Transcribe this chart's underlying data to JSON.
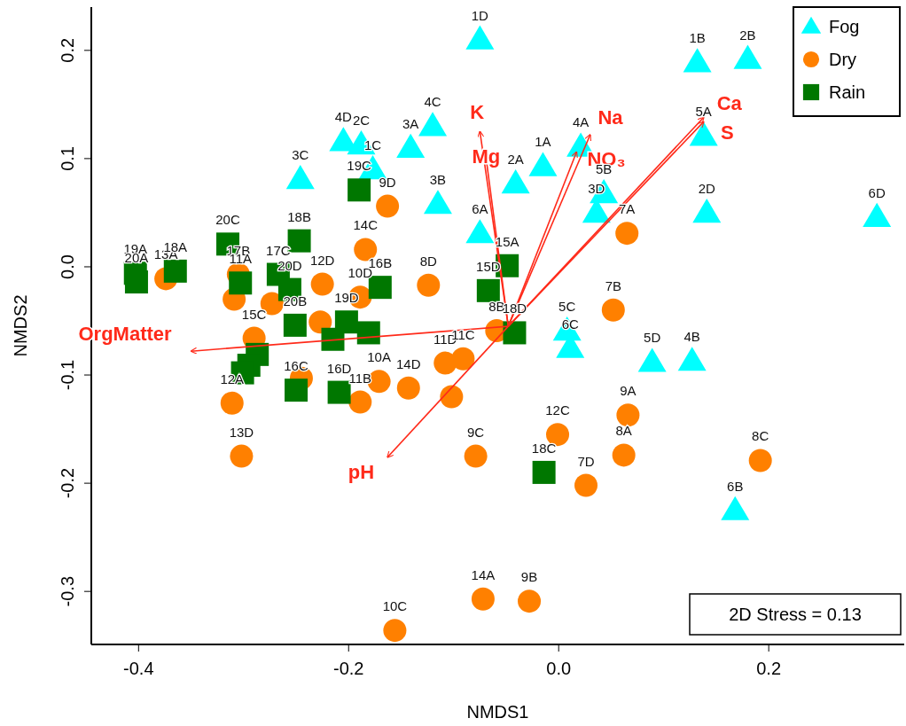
{
  "chart_data": {
    "type": "scatter",
    "xlabel": "NMDS1",
    "ylabel": "NMDS2",
    "xlim": [
      -0.445,
      0.329
    ],
    "ylim": [
      -0.349,
      0.24
    ],
    "xticks": [
      -0.4,
      -0.2,
      {
        "value": 0,
        "label": "0.0"
      },
      0.2
    ],
    "yticks": [
      -0.3,
      -0.2,
      -0.1,
      {
        "value": 0,
        "label": "0.0"
      },
      0.1,
      0.2
    ],
    "grid": false,
    "legend": "top right",
    "series": [
      {
        "name": "Fog",
        "color": "#00ffff",
        "marker": "triangle",
        "x": [
          -0.075,
          0.132,
          0.18,
          -0.12,
          -0.141,
          -0.205,
          -0.188,
          -0.177,
          -0.246,
          -0.115,
          -0.075,
          -0.041,
          -0.015,
          0.021,
          0.043,
          0.036,
          0.138,
          0.141,
          0.303,
          0.008,
          0.011,
          0.089,
          0.127,
          0.168
        ],
        "values": [
          0.21,
          0.189,
          0.192,
          0.13,
          0.11,
          0.116,
          0.113,
          0.09,
          0.081,
          0.058,
          0.031,
          0.077,
          0.093,
          0.111,
          0.068,
          0.05,
          0.121,
          0.05,
          0.046,
          -0.059,
          -0.075,
          -0.088,
          -0.087,
          -0.225
        ]
      },
      {
        "name": "Dry",
        "color": "#ff8000",
        "marker": "circle",
        "x": [
          -0.374,
          -0.305,
          -0.309,
          -0.273,
          -0.29,
          -0.311,
          -0.302,
          -0.163,
          -0.184,
          -0.225,
          -0.189,
          -0.227,
          -0.124,
          -0.059,
          -0.108,
          -0.091,
          -0.171,
          -0.143,
          -0.189,
          -0.245,
          -0.102,
          0.065,
          0.052,
          0.066,
          -0.001,
          0.062,
          0.026,
          0.192,
          -0.079,
          -0.072,
          -0.028,
          -0.156
        ],
        "values": [
          -0.011,
          -0.007,
          -0.03,
          -0.034,
          -0.066,
          -0.126,
          -0.175,
          0.056,
          0.016,
          -0.016,
          -0.028,
          -0.051,
          -0.017,
          -0.059,
          -0.089,
          -0.085,
          -0.106,
          -0.112,
          -0.125,
          -0.103,
          -0.12,
          0.031,
          -0.04,
          -0.137,
          -0.155,
          -0.174,
          -0.202,
          -0.179,
          -0.175,
          -0.307,
          -0.309,
          -0.336
        ]
      },
      {
        "name": "Rain",
        "color": "#007700",
        "marker": "square",
        "x": [
          -0.403,
          -0.402,
          -0.365,
          -0.315,
          -0.303,
          -0.267,
          -0.256,
          -0.251,
          -0.287,
          -0.295,
          -0.301,
          -0.247,
          -0.19,
          -0.17,
          -0.202,
          -0.181,
          -0.215,
          -0.049,
          -0.067,
          -0.042,
          -0.209,
          -0.25,
          -0.014
        ],
        "values": [
          -0.006,
          -0.014,
          -0.004,
          0.021,
          -0.015,
          -0.007,
          -0.021,
          -0.054,
          -0.081,
          -0.091,
          -0.098,
          0.024,
          0.071,
          -0.019,
          -0.051,
          -0.061,
          -0.067,
          0.001,
          -0.022,
          -0.061,
          -0.116,
          -0.114,
          -0.19
        ]
      },
      {
        "name": "K",
        "type": "line",
        "color": "#ff2a1a",
        "x": [
          -0.048,
          -0.075
        ],
        "values": [
          -0.055,
          0.125
        ]
      },
      {
        "name": "Mg",
        "type": "line",
        "color": "#ff2a1a",
        "x": [
          -0.048,
          -0.07
        ],
        "values": [
          -0.055,
          0.107
        ]
      },
      {
        "name": "Na",
        "type": "line",
        "color": "#ff2a1a",
        "x": [
          -0.048,
          0.03
        ],
        "values": [
          -0.055,
          0.122
        ]
      },
      {
        "name": "NO₃",
        "type": "line",
        "color": "#ff2a1a",
        "x": [
          -0.048,
          0.017
        ],
        "values": [
          -0.055,
          0.106
        ]
      },
      {
        "name": "Ca",
        "type": "line",
        "color": "#ff2a1a",
        "x": [
          -0.048,
          0.138
        ],
        "values": [
          -0.055,
          0.138
        ]
      },
      {
        "name": "S",
        "type": "line",
        "color": "#ff2a1a",
        "x": [
          -0.048,
          0.138
        ],
        "values": [
          -0.055,
          0.134
        ]
      },
      {
        "name": "OrgMatter",
        "type": "line",
        "color": "#ff2a1a",
        "x": [
          -0.048,
          -0.35
        ],
        "values": [
          -0.055,
          -0.078
        ]
      },
      {
        "name": "pH",
        "type": "line",
        "color": "#ff2a1a",
        "x": [
          -0.048,
          -0.163
        ],
        "values": [
          -0.055,
          -0.176
        ]
      }
    ],
    "annotations": [
      "2D Stress = 0.13",
      {
        "text": "1D",
        "x": -0.075,
        "y": 0.21
      },
      {
        "text": "1B",
        "x": 0.132,
        "y": 0.189
      },
      {
        "text": "2B",
        "x": 0.18,
        "y": 0.192
      },
      {
        "text": "4C",
        "x": -0.12,
        "y": 0.13
      },
      {
        "text": "3A",
        "x": -0.141,
        "y": 0.11
      },
      {
        "text": "4D",
        "x": -0.205,
        "y": 0.116
      },
      {
        "text": "2C",
        "x": -0.188,
        "y": 0.113
      },
      {
        "text": "1C",
        "x": -0.177,
        "y": 0.09
      },
      {
        "text": "3C",
        "x": -0.246,
        "y": 0.081
      },
      {
        "text": "3B",
        "x": -0.115,
        "y": 0.058
      },
      {
        "text": "6A",
        "x": -0.075,
        "y": 0.031
      },
      {
        "text": "2A",
        "x": -0.041,
        "y": 0.077
      },
      {
        "text": "1A",
        "x": -0.015,
        "y": 0.093
      },
      {
        "text": "4A",
        "x": 0.021,
        "y": 0.111
      },
      {
        "text": "5B",
        "x": 0.043,
        "y": 0.068
      },
      {
        "text": "3D",
        "x": 0.036,
        "y": 0.05
      },
      {
        "text": "5A",
        "x": 0.138,
        "y": 0.121
      },
      {
        "text": "2D",
        "x": 0.141,
        "y": 0.05
      },
      {
        "text": "6D",
        "x": 0.303,
        "y": 0.046
      },
      {
        "text": "5C",
        "x": 0.008,
        "y": -0.059
      },
      {
        "text": "6C",
        "x": 0.011,
        "y": -0.075
      },
      {
        "text": "5D",
        "x": 0.089,
        "y": -0.088
      },
      {
        "text": "4B",
        "x": 0.127,
        "y": -0.087
      },
      {
        "text": "6B",
        "x": 0.168,
        "y": -0.225
      },
      {
        "text": "13A",
        "x": -0.374,
        "y": -0.011
      },
      {
        "text": "17B",
        "x": -0.305,
        "y": -0.007
      },
      {
        "text": "15C",
        "x": -0.29,
        "y": -0.066
      },
      {
        "text": "12A",
        "x": -0.311,
        "y": -0.126
      },
      {
        "text": "13D",
        "x": -0.302,
        "y": -0.175
      },
      {
        "text": "9D",
        "x": -0.163,
        "y": 0.056
      },
      {
        "text": "14C",
        "x": -0.184,
        "y": 0.016
      },
      {
        "text": "12D",
        "x": -0.225,
        "y": -0.016
      },
      {
        "text": "10D",
        "x": -0.189,
        "y": -0.028
      },
      {
        "text": "8D",
        "x": -0.124,
        "y": -0.017
      },
      {
        "text": "8B",
        "x": -0.059,
        "y": -0.059
      },
      {
        "text": "11D",
        "x": -0.108,
        "y": -0.089
      },
      {
        "text": "11C",
        "x": -0.091,
        "y": -0.085
      },
      {
        "text": "10A",
        "x": -0.171,
        "y": -0.106
      },
      {
        "text": "14D",
        "x": -0.143,
        "y": -0.112
      },
      {
        "text": "11B",
        "x": -0.189,
        "y": -0.125
      },
      {
        "text": "7A",
        "x": 0.065,
        "y": 0.031
      },
      {
        "text": "7B",
        "x": 0.052,
        "y": -0.04
      },
      {
        "text": "9A",
        "x": 0.066,
        "y": -0.137
      },
      {
        "text": "12C",
        "x": -0.001,
        "y": -0.155
      },
      {
        "text": "8A",
        "x": 0.062,
        "y": -0.174
      },
      {
        "text": "7D",
        "x": 0.026,
        "y": -0.202
      },
      {
        "text": "8C",
        "x": 0.192,
        "y": -0.179
      },
      {
        "text": "9C",
        "x": -0.079,
        "y": -0.175
      },
      {
        "text": "14A",
        "x": -0.072,
        "y": -0.307
      },
      {
        "text": "9B",
        "x": -0.028,
        "y": -0.309
      },
      {
        "text": "10C",
        "x": -0.156,
        "y": -0.336
      },
      {
        "text": "19A",
        "x": -0.403,
        "y": -0.006
      },
      {
        "text": "20A",
        "x": -0.402,
        "y": -0.014
      },
      {
        "text": "18A",
        "x": -0.365,
        "y": -0.004
      },
      {
        "text": "20C",
        "x": -0.315,
        "y": 0.021
      },
      {
        "text": "11A",
        "x": -0.303,
        "y": -0.015
      },
      {
        "text": "17C",
        "x": -0.267,
        "y": -0.007
      },
      {
        "text": "20D",
        "x": -0.256,
        "y": -0.021
      },
      {
        "text": "20B",
        "x": -0.251,
        "y": -0.054
      },
      {
        "text": "18B",
        "x": -0.247,
        "y": 0.024
      },
      {
        "text": "19C",
        "x": -0.19,
        "y": 0.071
      },
      {
        "text": "16B",
        "x": -0.17,
        "y": -0.019
      },
      {
        "text": "19D",
        "x": -0.202,
        "y": -0.051
      },
      {
        "text": "15A",
        "x": -0.049,
        "y": 0.001
      },
      {
        "text": "15D",
        "x": -0.067,
        "y": -0.022
      },
      {
        "text": "18D",
        "x": -0.042,
        "y": -0.061
      },
      {
        "text": "16D",
        "x": -0.209,
        "y": -0.116
      },
      {
        "text": "16C",
        "x": -0.25,
        "y": -0.114
      },
      {
        "text": "18C",
        "x": -0.014,
        "y": -0.19
      }
    ]
  }
}
